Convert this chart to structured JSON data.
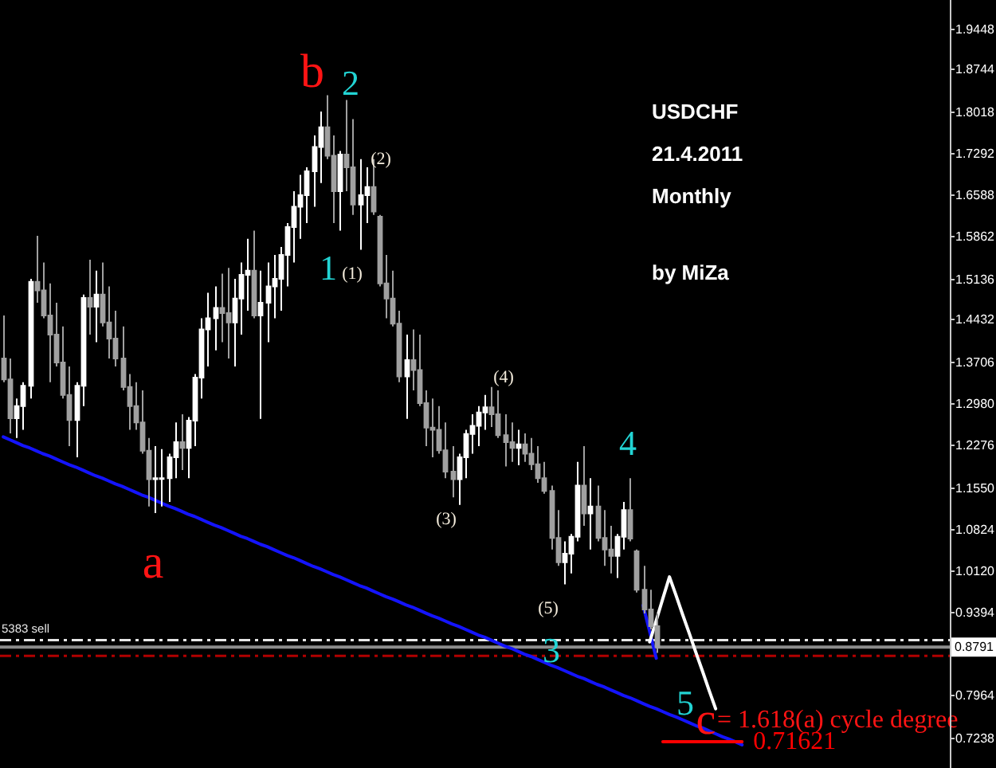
{
  "chart_data": {
    "type": "candlestick",
    "title": "USDCHF",
    "subtitle": "21.4.2011",
    "categories": [
      null,
      null,
      null,
      null,
      null,
      null,
      null,
      null,
      null,
      null,
      null,
      null,
      null,
      null,
      null,
      null,
      null,
      null,
      null,
      null,
      null,
      null,
      null,
      null,
      null,
      null,
      null,
      null,
      null,
      null,
      null,
      null,
      null,
      null,
      null,
      null,
      null,
      null,
      null,
      null,
      null,
      null,
      null,
      null,
      null,
      null,
      null,
      null,
      null,
      null,
      null,
      null,
      null,
      null,
      null,
      null,
      null,
      null,
      null,
      null,
      null,
      null,
      null,
      null,
      null,
      null,
      null,
      null,
      null,
      null,
      null,
      null,
      null,
      null,
      null,
      null,
      null,
      null,
      null,
      null,
      null,
      null,
      null,
      null,
      null,
      null,
      null,
      null,
      null,
      null,
      null,
      null,
      null,
      null,
      null,
      null,
      null,
      null,
      null,
      null,
      null,
      null,
      null,
      null,
      null,
      null,
      null,
      null,
      null,
      null,
      null,
      null,
      null,
      null,
      null,
      null,
      null,
      null,
      null,
      null,
      null,
      null,
      null,
      null,
      null,
      null,
      null,
      null,
      null,
      null,
      null,
      null,
      null,
      null,
      null,
      null,
      null,
      null,
      null,
      null,
      null,
      null,
      null,
      null
    ],
    "ohlc": [
      [
        1.376,
        1.45,
        1.335,
        1.34
      ],
      [
        1.34,
        1.376,
        1.247,
        1.273
      ],
      [
        1.273,
        1.307,
        1.239,
        1.294
      ],
      [
        1.294,
        1.335,
        1.253,
        1.329
      ],
      [
        1.329,
        1.513,
        1.307,
        1.508
      ],
      [
        1.508,
        1.587,
        1.472,
        1.493
      ],
      [
        1.493,
        1.541,
        1.445,
        1.45
      ],
      [
        1.45,
        1.505,
        1.335,
        1.417
      ],
      [
        1.417,
        1.472,
        1.362,
        1.369
      ],
      [
        1.369,
        1.431,
        1.307,
        1.313
      ],
      [
        1.313,
        1.362,
        1.225,
        1.27
      ],
      [
        1.27,
        1.335,
        1.206,
        1.329
      ],
      [
        1.329,
        1.486,
        1.294,
        1.48
      ],
      [
        1.48,
        1.546,
        1.417,
        1.465
      ],
      [
        1.465,
        1.527,
        1.404,
        1.486
      ],
      [
        1.486,
        1.541,
        1.431,
        1.438
      ],
      [
        1.438,
        1.5,
        1.376,
        1.41
      ],
      [
        1.41,
        1.458,
        1.362,
        1.376
      ],
      [
        1.376,
        1.431,
        1.321,
        1.327
      ],
      [
        1.327,
        1.349,
        1.253,
        1.294
      ],
      [
        1.294,
        1.335,
        1.253,
        1.266
      ],
      [
        1.266,
        1.321,
        1.212,
        1.217
      ],
      [
        1.217,
        1.239,
        1.121,
        1.168
      ],
      [
        1.168,
        1.225,
        1.11,
        1.17
      ],
      [
        1.17,
        1.22,
        1.121,
        1.17
      ],
      [
        1.17,
        1.212,
        1.129,
        1.206
      ],
      [
        1.206,
        1.266,
        1.17,
        1.232
      ],
      [
        1.232,
        1.28,
        1.184,
        1.222
      ],
      [
        1.222,
        1.275,
        1.17,
        1.269
      ],
      [
        1.269,
        1.349,
        1.225,
        1.343
      ],
      [
        1.343,
        1.445,
        1.307,
        1.426
      ],
      [
        1.426,
        1.489,
        1.362,
        1.445
      ],
      [
        1.445,
        1.5,
        1.39,
        1.463
      ],
      [
        1.463,
        1.522,
        1.404,
        1.454
      ],
      [
        1.454,
        1.532,
        1.376,
        1.438
      ],
      [
        1.438,
        1.513,
        1.362,
        1.479
      ],
      [
        1.479,
        1.541,
        1.417,
        1.52
      ],
      [
        1.52,
        1.582,
        1.458,
        1.527
      ],
      [
        1.527,
        1.596,
        1.445,
        1.45
      ],
      [
        1.45,
        1.527,
        1.272,
        1.472
      ],
      [
        1.472,
        1.541,
        1.404,
        1.5
      ],
      [
        1.5,
        1.554,
        1.445,
        1.513
      ],
      [
        1.513,
        1.568,
        1.458,
        1.554
      ],
      [
        1.554,
        1.609,
        1.5,
        1.602
      ],
      [
        1.602,
        1.664,
        1.541,
        1.637
      ],
      [
        1.637,
        1.692,
        1.582,
        1.657
      ],
      [
        1.657,
        1.705,
        1.609,
        1.698
      ],
      [
        1.698,
        1.76,
        1.637,
        1.74
      ],
      [
        1.74,
        1.801,
        1.678,
        1.774
      ],
      [
        1.774,
        1.829,
        1.719,
        1.725
      ],
      [
        1.725,
        1.76,
        1.609,
        1.664
      ],
      [
        1.664,
        1.733,
        1.596,
        1.727
      ],
      [
        1.727,
        1.821,
        1.664,
        1.705
      ],
      [
        1.705,
        1.788,
        1.623,
        1.641
      ],
      [
        1.641,
        1.719,
        1.563,
        1.657
      ],
      [
        1.657,
        1.705,
        1.609,
        1.671
      ],
      [
        1.671,
        1.719,
        1.623,
        1.629
      ],
      [
        1.62,
        1.623,
        1.5,
        1.505
      ],
      [
        1.505,
        1.554,
        1.445,
        1.479
      ],
      [
        1.479,
        1.527,
        1.431,
        1.436
      ],
      [
        1.436,
        1.458,
        1.335,
        1.345
      ],
      [
        1.345,
        1.417,
        1.272,
        1.373
      ],
      [
        1.373,
        1.426,
        1.321,
        1.356
      ],
      [
        1.356,
        1.417,
        1.294,
        1.299
      ],
      [
        1.299,
        1.321,
        1.225,
        1.257
      ],
      [
        1.257,
        1.307,
        1.206,
        1.253
      ],
      [
        1.253,
        1.294,
        1.212,
        1.218
      ],
      [
        1.218,
        1.266,
        1.17,
        1.181
      ],
      [
        1.181,
        1.225,
        1.137,
        1.168
      ],
      [
        1.168,
        1.212,
        1.124,
        1.206
      ],
      [
        1.206,
        1.253,
        1.17,
        1.246
      ],
      [
        1.246,
        1.28,
        1.212,
        1.26
      ],
      [
        1.26,
        1.294,
        1.225,
        1.283
      ],
      [
        1.283,
        1.313,
        1.253,
        1.292
      ],
      [
        1.292,
        1.327,
        1.258,
        1.28
      ],
      [
        1.28,
        1.321,
        1.239,
        1.244
      ],
      [
        1.244,
        1.28,
        1.19,
        1.232
      ],
      [
        1.232,
        1.266,
        1.198,
        1.222
      ],
      [
        1.222,
        1.253,
        1.192,
        1.228
      ],
      [
        1.228,
        1.247,
        1.198,
        1.212
      ],
      [
        1.212,
        1.239,
        1.184,
        1.194
      ],
      [
        1.194,
        1.225,
        1.162,
        1.17
      ],
      [
        1.17,
        1.198,
        1.143,
        1.148
      ],
      [
        1.148,
        1.157,
        1.047,
        1.067
      ],
      [
        1.067,
        1.115,
        1.019,
        1.025
      ],
      [
        1.025,
        1.061,
        0.987,
        1.04
      ],
      [
        1.04,
        1.074,
        1.006,
        1.069
      ],
      [
        1.069,
        1.198,
        1.061,
        1.157
      ],
      [
        1.157,
        1.225,
        1.088,
        1.109
      ],
      [
        1.109,
        1.17,
        1.047,
        1.121
      ],
      [
        1.121,
        1.157,
        1.061,
        1.067
      ],
      [
        1.067,
        1.115,
        1.019,
        1.047
      ],
      [
        1.047,
        1.088,
        1.006,
        1.036
      ],
      [
        1.036,
        1.074,
        0.998,
        1.069
      ],
      [
        1.069,
        1.129,
        1.047,
        1.115
      ],
      [
        1.115,
        1.17,
        1.061,
        1.066
      ],
      [
        1.044,
        1.047,
        0.973,
        0.978
      ],
      [
        0.978,
        1.019,
        0.937,
        0.944
      ],
      [
        0.944,
        0.978,
        0.91,
        0.915
      ],
      [
        0.915,
        0.937,
        0.869,
        0.879
      ],
      null,
      null,
      null,
      null,
      null,
      null,
      null,
      null,
      null,
      null,
      null,
      null,
      null,
      null,
      null,
      null,
      null,
      null,
      null,
      null,
      null,
      null,
      null,
      null,
      null,
      null,
      null,
      null,
      null,
      null,
      null,
      null,
      null,
      null,
      null,
      null,
      null,
      null,
      null,
      null,
      null,
      null,
      null,
      null
    ],
    "colors": [
      "#a0a0a0",
      "#a0a0a0",
      "#ffffff",
      "#ffffff",
      "#ffffff",
      "#a0a0a0",
      "#a0a0a0",
      "#a0a0a0",
      "#a0a0a0",
      "#a0a0a0",
      "#a0a0a0",
      "#ffffff",
      "#ffffff",
      "#a0a0a0",
      "#ffffff",
      "#a0a0a0",
      "#a0a0a0",
      "#a0a0a0",
      "#a0a0a0",
      "#a0a0a0",
      "#a0a0a0",
      "#a0a0a0",
      "#a0a0a0",
      "#ffffff",
      "#ffffff",
      "#ffffff",
      "#ffffff",
      "#a0a0a0",
      "#ffffff",
      "#ffffff",
      "#ffffff",
      "#ffffff",
      "#ffffff",
      "#a0a0a0",
      "#a0a0a0",
      "#ffffff",
      "#ffffff",
      "#ffffff",
      "#a0a0a0",
      "#ffffff",
      "#ffffff",
      "#ffffff",
      "#ffffff",
      "#ffffff",
      "#ffffff",
      "#ffffff",
      "#ffffff",
      "#ffffff",
      "#ffffff",
      "#a0a0a0",
      "#a0a0a0",
      "#ffffff",
      "#a0a0a0",
      "#a0a0a0",
      "#ffffff",
      "#ffffff",
      "#a0a0a0",
      "#a0a0a0",
      "#a0a0a0",
      "#a0a0a0",
      "#a0a0a0",
      "#ffffff",
      "#a0a0a0",
      "#a0a0a0",
      "#a0a0a0",
      "#a0a0a0",
      "#a0a0a0",
      "#a0a0a0",
      "#a0a0a0",
      "#ffffff",
      "#ffffff",
      "#ffffff",
      "#ffffff",
      "#ffffff",
      "#a0a0a0",
      "#a0a0a0",
      "#a0a0a0",
      "#a0a0a0",
      "#ffffff",
      "#a0a0a0",
      "#a0a0a0",
      "#a0a0a0",
      "#a0a0a0",
      "#a0a0a0",
      "#a0a0a0",
      "#ffffff",
      "#ffffff",
      "#ffffff",
      "#a0a0a0",
      "#ffffff",
      "#a0a0a0",
      "#a0a0a0",
      "#a0a0a0",
      "#ffffff",
      "#ffffff",
      "#a0a0a0",
      "#a0a0a0",
      "#a0a0a0",
      "#a0a0a0",
      "#a0a0a0",
      null,
      null,
      null,
      null,
      null,
      null,
      null,
      null,
      null,
      null,
      null,
      null,
      null,
      null,
      null,
      null,
      null,
      null,
      null,
      null,
      null,
      null,
      null,
      null,
      null,
      null,
      null,
      null,
      null,
      null,
      null,
      null,
      null,
      null,
      null,
      null,
      null,
      null,
      null,
      null,
      null,
      null,
      null,
      null
    ],
    "series": [
      {
        "type": "line",
        "color": "#1414ff",
        "values": [
          1.241,
          1.236,
          1.231,
          1.226,
          1.222,
          1.217,
          1.212,
          1.208,
          1.203,
          1.198,
          1.193,
          1.189,
          1.184,
          1.179,
          1.174,
          1.17,
          1.165,
          1.16,
          1.156,
          1.151,
          1.146,
          1.141,
          1.137,
          1.132,
          1.127,
          1.122,
          1.118,
          1.113,
          1.108,
          1.104,
          1.099,
          1.094,
          1.089,
          1.085,
          1.08,
          1.075,
          1.07,
          1.066,
          1.061,
          1.056,
          1.052,
          1.047,
          1.042,
          1.037,
          1.033,
          1.028,
          1.023,
          1.018,
          1.014,
          1.009,
          1.004,
          1.0,
          0.995,
          0.99,
          0.985,
          0.981,
          0.976,
          0.971,
          0.966,
          0.962,
          0.957,
          0.952,
          0.948,
          0.943,
          0.938,
          0.933,
          0.929,
          0.924,
          0.919,
          0.915,
          0.91,
          0.905,
          0.9,
          0.896,
          0.891,
          0.886,
          0.881,
          0.877,
          0.872,
          0.867,
          0.863,
          0.858,
          0.853,
          0.848,
          0.844,
          0.839,
          0.834,
          0.829,
          0.825,
          0.82,
          0.815,
          0.811,
          0.806,
          0.801,
          0.796,
          0.792,
          0.787,
          0.782,
          0.777,
          0.773,
          0.768,
          0.763,
          0.759,
          0.754,
          0.749,
          0.744,
          0.74,
          0.735,
          0.73,
          0.725,
          0.721,
          0.716,
          0.711,
          null,
          null,
          null,
          null,
          null,
          null,
          null,
          null,
          null,
          null,
          null,
          null,
          null,
          null,
          null,
          null,
          null,
          null,
          null,
          null,
          null,
          null,
          null,
          null,
          null,
          null,
          null,
          null,
          null,
          null,
          null
        ]
      },
      {
        "type": "line",
        "color": "#1414ff",
        "values": [
          null,
          null,
          null,
          null,
          null,
          null,
          null,
          null,
          null,
          null,
          null,
          null,
          null,
          null,
          null,
          null,
          null,
          null,
          null,
          null,
          null,
          null,
          null,
          null,
          null,
          null,
          null,
          null,
          null,
          null,
          null,
          null,
          null,
          null,
          null,
          null,
          null,
          null,
          null,
          null,
          null,
          null,
          null,
          null,
          null,
          null,
          null,
          null,
          null,
          null,
          null,
          null,
          null,
          null,
          null,
          null,
          null,
          null,
          null,
          null,
          null,
          null,
          null,
          null,
          null,
          null,
          null,
          null,
          null,
          null,
          null,
          null,
          null,
          null,
          null,
          null,
          null,
          null,
          null,
          null,
          null,
          null,
          null,
          null,
          null,
          null,
          null,
          null,
          null,
          null,
          null,
          null,
          null,
          null,
          null,
          null,
          null,
          0.951,
          0.906,
          0.86,
          null,
          null,
          null,
          null,
          null,
          null,
          null,
          null,
          null,
          null,
          null,
          null,
          null,
          null,
          null,
          null,
          null,
          null,
          null,
          null,
          null,
          null,
          null,
          null,
          null,
          null,
          null,
          null,
          null,
          null,
          null,
          null,
          null,
          null,
          null,
          null,
          null,
          null,
          null,
          null,
          null,
          null,
          null,
          null
        ]
      },
      {
        "type": "line",
        "color": "#ffffff",
        "values": [
          null,
          null,
          null,
          null,
          null,
          null,
          null,
          null,
          null,
          null,
          null,
          null,
          null,
          null,
          null,
          null,
          null,
          null,
          null,
          null,
          null,
          null,
          null,
          null,
          null,
          null,
          null,
          null,
          null,
          null,
          null,
          null,
          null,
          null,
          null,
          null,
          null,
          null,
          null,
          null,
          null,
          null,
          null,
          null,
          null,
          null,
          null,
          null,
          null,
          null,
          null,
          null,
          null,
          null,
          null,
          null,
          null,
          null,
          null,
          null,
          null,
          null,
          null,
          null,
          null,
          null,
          null,
          null,
          null,
          null,
          null,
          null,
          null,
          null,
          null,
          null,
          null,
          null,
          null,
          null,
          null,
          null,
          null,
          null,
          null,
          null,
          null,
          null,
          null,
          null,
          null,
          null,
          null,
          null,
          null,
          null,
          null,
          null,
          0.888,
          0.925,
          0.963,
          1.0,
          0.968,
          0.935,
          0.903,
          0.87,
          0.838,
          0.805,
          0.773,
          null,
          null,
          null,
          null,
          null,
          null,
          null,
          null,
          null,
          null,
          null,
          null,
          null,
          null,
          null,
          null,
          null,
          null,
          null,
          null,
          null,
          null,
          null,
          null,
          null,
          null,
          null,
          null,
          null,
          null,
          null,
          null,
          null,
          null,
          null
        ]
      },
      {
        "type": "line",
        "color": "#ff0000",
        "values": [
          null,
          null,
          null,
          null,
          null,
          null,
          null,
          null,
          null,
          null,
          null,
          null,
          null,
          null,
          null,
          null,
          null,
          null,
          null,
          null,
          null,
          null,
          null,
          null,
          null,
          null,
          null,
          null,
          null,
          null,
          null,
          null,
          null,
          null,
          null,
          null,
          null,
          null,
          null,
          null,
          null,
          null,
          null,
          null,
          null,
          null,
          null,
          null,
          null,
          null,
          null,
          null,
          null,
          null,
          null,
          null,
          null,
          null,
          null,
          null,
          null,
          null,
          null,
          null,
          null,
          null,
          null,
          null,
          null,
          null,
          null,
          null,
          null,
          null,
          null,
          null,
          null,
          null,
          null,
          null,
          null,
          null,
          null,
          null,
          null,
          null,
          null,
          null,
          null,
          null,
          null,
          null,
          null,
          null,
          null,
          null,
          null,
          null,
          null,
          null,
          0.71621,
          0.71621,
          0.71621,
          0.71621,
          0.71621,
          0.71621,
          0.71621,
          0.71621,
          0.71621,
          0.71621,
          0.71621,
          0.71621,
          0.71621,
          null,
          null,
          null,
          null,
          null,
          null,
          null,
          null,
          null,
          null,
          null,
          null,
          null,
          null,
          null,
          null,
          null,
          null,
          null,
          null,
          null,
          null,
          null,
          null,
          null,
          null,
          null,
          null,
          null,
          null,
          null
        ],
        "value_labels": [
          null,
          null,
          null,
          null,
          null,
          null,
          null,
          null,
          null,
          null,
          null,
          null,
          null,
          null,
          null,
          null,
          null,
          null,
          null,
          null,
          null,
          null,
          null,
          null,
          null,
          null,
          null,
          null,
          null,
          null,
          null,
          null,
          null,
          null,
          null,
          null,
          null,
          null,
          null,
          null,
          null,
          null,
          null,
          null,
          null,
          null,
          null,
          null,
          null,
          null,
          null,
          null,
          null,
          null,
          null,
          null,
          null,
          null,
          null,
          null,
          null,
          null,
          null,
          null,
          null,
          null,
          null,
          null,
          null,
          null,
          null,
          null,
          null,
          null,
          null,
          null,
          null,
          null,
          null,
          null,
          null,
          null,
          null,
          null,
          null,
          null,
          null,
          null,
          null,
          null,
          null,
          null,
          null,
          null,
          null,
          null,
          null,
          null,
          null,
          null,
          null,
          null,
          null,
          null,
          null,
          null,
          null,
          null,
          null,
          null,
          null,
          null,
          "0.71621",
          null,
          null,
          null,
          null,
          null,
          null,
          null,
          null,
          null,
          null,
          null,
          null,
          null,
          null,
          null,
          null,
          null,
          null,
          null,
          null,
          null,
          null,
          null,
          null,
          null,
          null,
          null,
          null,
          null,
          null,
          null
        ]
      }
    ],
    "ylim": [
      0.671,
      1.993
    ],
    "yticks": [
      1.9448,
      1.8744,
      1.8018,
      1.7292,
      1.6588,
      1.5862,
      1.5136,
      1.4432,
      1.3706,
      {
        "value": 1.298,
        "label": "1.2980"
      },
      1.2276,
      {
        "value": 1.155,
        "label": "1.1550"
      },
      1.0824,
      {
        "value": 1.012,
        "label": "1.0120"
      },
      0.9394,
      0.7964,
      0.7238
    ],
    "tick_labels": "y",
    "ref_lines": [
      {
        "axis": "y",
        "value": 0.891,
        "label": "5383 sell",
        "color": "#e6e6e6",
        "line_style": "dashed"
      },
      {
        "axis": "y",
        "value": 0.8791,
        "label": "0.8791",
        "color": "#8c8c8c",
        "line_style": "solid"
      },
      {
        "axis": "y",
        "value": 0.864,
        "color": "#b00000",
        "line_style": "dashed"
      }
    ],
    "annotations": [
      "a",
      "b",
      "1",
      "2",
      "(1)",
      "(2)",
      "(3)",
      "(4)",
      "(5)",
      "3",
      "4",
      "5",
      "c",
      "= 1.618(a) cycle degree",
      "Monthly",
      "by MiZa"
    ]
  }
}
